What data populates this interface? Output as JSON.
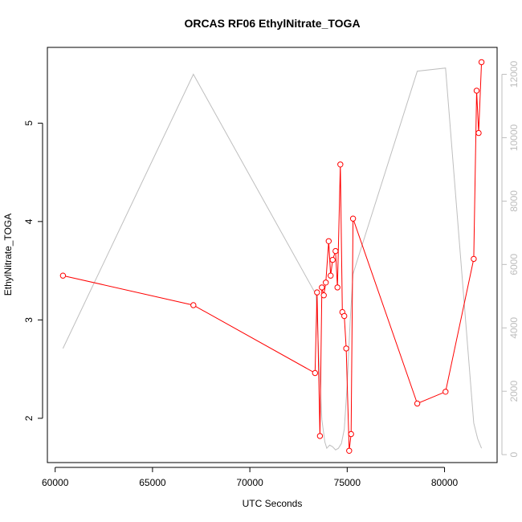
{
  "chart_data": {
    "type": "line",
    "title": "ORCAS RF06 EthylNitrate_TOGA",
    "xlabel": "UTC Seconds",
    "ylabel": "EthylNitrate_TOGA",
    "xlim": [
      59600,
      82700
    ],
    "ylim": [
      1.55,
      5.77
    ],
    "y2lim": [
      -250,
      12850
    ],
    "x_ticks": [
      60000,
      65000,
      70000,
      75000,
      80000
    ],
    "y_ticks": [
      2,
      3,
      4,
      5
    ],
    "y2_ticks": [
      0,
      2000,
      4000,
      6000,
      8000,
      10000,
      12000
    ],
    "grid": false,
    "legend": "none",
    "colors": {
      "primary": "#ff0000",
      "secondary": "#bebebe",
      "frame": "#000000"
    },
    "series": [
      {
        "axis": "left",
        "style": "line+open-circles",
        "x": [
          60400,
          67100,
          73350,
          73450,
          73600,
          73700,
          73800,
          73900,
          74050,
          74150,
          74250,
          74400,
          74500,
          74650,
          74750,
          74850,
          74950,
          75100,
          75200,
          75300,
          78600,
          80050,
          81500,
          81650,
          81750,
          81900
        ],
        "y": [
          3.45,
          3.15,
          2.46,
          3.28,
          1.82,
          3.33,
          3.25,
          3.38,
          3.8,
          3.45,
          3.61,
          3.7,
          3.33,
          4.58,
          3.08,
          3.04,
          2.71,
          1.67,
          1.84,
          4.03,
          2.15,
          2.27,
          3.62,
          5.33,
          4.9,
          5.62
        ]
      },
      {
        "axis": "right",
        "style": "line",
        "x": [
          60400,
          67100,
          73400,
          73550,
          73700,
          73850,
          73950,
          74100,
          74250,
          74400,
          74550,
          74700,
          74850,
          75000,
          75150,
          75300,
          75500,
          78600,
          80050,
          81500,
          81700,
          81900
        ],
        "y": [
          3350,
          12000,
          5050,
          3000,
          1100,
          400,
          200,
          300,
          250,
          150,
          200,
          350,
          800,
          2200,
          4200,
          5700,
          6100,
          12100,
          12200,
          1000,
          500,
          200
        ]
      }
    ]
  }
}
